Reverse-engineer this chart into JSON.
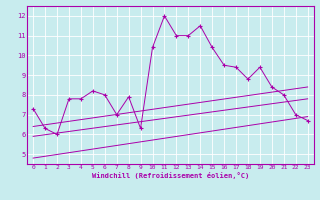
{
  "bg_color": "#c8ecee",
  "line_color": "#aa00aa",
  "xlim": [
    -0.5,
    23.5
  ],
  "ylim": [
    4.5,
    12.5
  ],
  "xticks": [
    0,
    1,
    2,
    3,
    4,
    5,
    6,
    7,
    8,
    9,
    10,
    11,
    12,
    13,
    14,
    15,
    16,
    17,
    18,
    19,
    20,
    21,
    22,
    23
  ],
  "yticks": [
    5,
    6,
    7,
    8,
    9,
    10,
    11,
    12
  ],
  "main_x": [
    0,
    1,
    2,
    3,
    4,
    5,
    6,
    7,
    8,
    9,
    10,
    11,
    12,
    13,
    14,
    15,
    16,
    17,
    18,
    19,
    20,
    21,
    22,
    23
  ],
  "main_y": [
    7.3,
    6.3,
    6.0,
    7.8,
    7.8,
    8.2,
    8.0,
    7.0,
    7.9,
    6.3,
    10.4,
    12.0,
    11.0,
    11.0,
    11.5,
    10.4,
    9.5,
    9.4,
    8.8,
    9.4,
    8.4,
    8.0,
    7.0,
    6.7
  ],
  "line1_x": [
    0,
    23
  ],
  "line1_y": [
    6.4,
    8.4
  ],
  "line2_x": [
    0,
    23
  ],
  "line2_y": [
    5.9,
    7.8
  ],
  "line3_x": [
    0,
    23
  ],
  "line3_y": [
    4.8,
    6.9
  ],
  "xlabel": "Windchill (Refroidissement éolien,°C)",
  "tick_fontsize": 4.5,
  "xlabel_fontsize": 5.0
}
